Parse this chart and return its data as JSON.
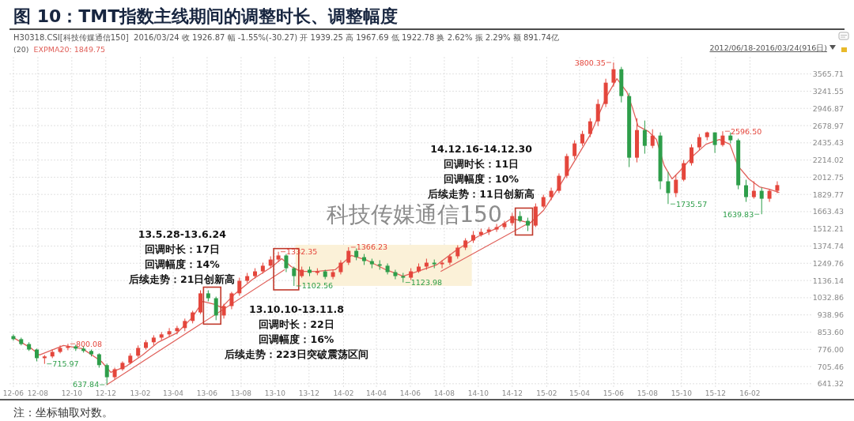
{
  "chart_data": {
    "type": "candlestick",
    "title": "图 10：TMT指数主线期间的调整时长、调整幅度",
    "subtitle": "H30318.CSI[科技传媒通信150]  2016/03/24 收 1926.87 幅 -1.55%(-30.27) 开 1939.25 高 1967.69 低 1922.78 换 2.62% 振 2.29% 额 891.74亿",
    "legend_title": "(20)",
    "legend": "top left",
    "log": true,
    "grid": true,
    "xlim": [
      "2012-06-11",
      "2016-05-24"
    ],
    "ylim": [
      627,
      3920
    ],
    "xticks": [
      {
        "value": "2012-06-18",
        "label": "12-06"
      },
      {
        "value": "2012-08-01",
        "label": "12-08"
      },
      {
        "value": "2012-10-01",
        "label": "12-10"
      },
      {
        "value": "2012-12-01",
        "label": "12-12"
      },
      {
        "value": "2013-02-01",
        "label": "13-02"
      },
      {
        "value": "2013-04-01",
        "label": "13-04"
      },
      {
        "value": "2013-06-01",
        "label": "13-06"
      },
      {
        "value": "2013-08-01",
        "label": "13-08"
      },
      {
        "value": "2013-10-01",
        "label": "13-10"
      },
      {
        "value": "2013-12-01",
        "label": "13-12"
      },
      {
        "value": "2014-02-01",
        "label": "14-02"
      },
      {
        "value": "2014-04-01",
        "label": "14-04"
      },
      {
        "value": "2014-06-01",
        "label": "14-06"
      },
      {
        "value": "2014-08-01",
        "label": "14-08"
      },
      {
        "value": "2014-10-01",
        "label": "14-10"
      },
      {
        "value": "2014-12-01",
        "label": "14-12"
      },
      {
        "value": "2015-02-01",
        "label": "15-02"
      },
      {
        "value": "2015-04-01",
        "label": "15-04"
      },
      {
        "value": "2015-06-01",
        "label": "15-06"
      },
      {
        "value": "2015-08-01",
        "label": "15-08"
      },
      {
        "value": "2015-10-01",
        "label": "15-10"
      },
      {
        "value": "2015-12-01",
        "label": "15-12"
      },
      {
        "value": "2016-02-01",
        "label": "16-02"
      }
    ],
    "yticks": [
      641.32,
      705.46,
      {
        "value": 776,
        "label": "776.00"
      },
      {
        "value": 853.6,
        "label": "853.60"
      },
      938.96,
      1032.86,
      1136.14,
      1249.76,
      1374.74,
      1512.21,
      1663.43,
      1829.77,
      2012.75,
      2214.02,
      2435.43,
      2678.97,
      2946.87,
      3241.55,
      3565.71
    ],
    "series": [
      {
        "x": [
          "2012-06-18",
          "2012-07-02",
          "2012-07-16",
          "2012-07-30",
          "2012-08-13",
          "2012-08-27",
          "2012-09-10",
          "2012-09-24",
          "2012-10-08",
          "2012-10-22",
          "2012-11-05",
          "2012-11-19",
          "2012-12-03",
          "2012-12-17",
          "2012-12-31",
          "2013-01-14",
          "2013-01-28",
          "2013-02-11",
          "2013-02-25",
          "2013-03-11",
          "2013-03-25",
          "2013-04-08",
          "2013-04-22",
          "2013-05-06",
          "2013-05-20",
          "2013-06-03",
          "2013-06-17",
          "2013-07-01",
          "2013-07-15",
          "2013-07-29",
          "2013-08-12",
          "2013-08-26",
          "2013-09-09",
          "2013-09-23",
          "2013-10-07",
          "2013-10-21",
          "2013-11-04",
          "2013-11-18",
          "2013-12-02",
          "2013-12-16",
          "2013-12-30",
          "2014-01-13",
          "2014-01-27",
          "2014-02-10",
          "2014-02-24",
          "2014-03-10",
          "2014-03-24",
          "2014-04-07",
          "2014-04-21",
          "2014-05-05",
          "2014-05-19",
          "2014-06-02",
          "2014-06-16",
          "2014-06-30",
          "2014-07-14",
          "2014-07-28",
          "2014-08-11",
          "2014-08-25",
          "2014-09-08",
          "2014-09-22",
          "2014-10-06",
          "2014-10-20",
          "2014-11-03",
          "2014-11-17",
          "2014-12-01",
          "2014-12-15",
          "2014-12-29",
          "2015-01-12",
          "2015-01-26",
          "2015-02-09",
          "2015-02-23",
          "2015-03-09",
          "2015-03-23",
          "2015-04-06",
          "2015-04-20",
          "2015-05-04",
          "2015-05-18",
          "2015-06-01",
          "2015-06-15",
          "2015-06-29",
          "2015-07-13",
          "2015-07-27",
          "2015-08-10",
          "2015-08-24",
          "2015-09-07",
          "2015-09-21",
          "2015-10-05",
          "2015-10-19",
          "2015-11-02",
          "2015-11-16",
          "2015-11-30",
          "2015-12-14",
          "2015-12-28",
          "2016-01-11",
          "2016-01-25",
          "2016-02-08",
          "2016-02-22",
          "2016-03-07",
          "2016-03-21"
        ],
        "ohlc": [
          [
            835,
            843,
            814,
            821
          ],
          [
            821,
            828,
            793,
            799
          ],
          [
            799,
            807,
            769,
            775
          ],
          [
            775,
            779,
            726,
            739
          ],
          [
            739,
            752,
            715.97,
            746
          ],
          [
            746,
            775,
            739,
            765
          ],
          [
            765,
            793,
            759,
            782
          ],
          [
            782,
            800.08,
            772,
            789
          ],
          [
            789,
            796,
            769,
            779
          ],
          [
            779,
            789,
            762,
            769
          ],
          [
            769,
            775,
            746,
            755
          ],
          [
            755,
            759,
            701,
            711
          ],
          [
            711,
            717,
            637.84,
            665
          ],
          [
            665,
            701,
            657,
            695
          ],
          [
            695,
            726,
            689,
            720
          ],
          [
            720,
            759,
            714,
            749
          ],
          [
            749,
            793,
            742,
            782
          ],
          [
            782,
            817,
            775,
            807
          ],
          [
            807,
            839,
            793,
            828
          ],
          [
            828,
            854,
            817,
            843
          ],
          [
            843,
            873,
            832,
            858
          ],
          [
            858,
            884,
            843,
            873
          ],
          [
            873,
            920,
            858,
            908
          ],
          [
            908,
            961,
            896,
            952
          ],
          [
            952,
            1076,
            944,
            1058
          ],
          [
            1058,
            1076,
            1012,
            1030
          ],
          [
            1030,
            1039,
            912,
            936
          ],
          [
            936,
            999,
            920,
            986
          ],
          [
            986,
            1067,
            969,
            1058
          ],
          [
            1058,
            1154,
            1044,
            1134
          ],
          [
            1134,
            1185,
            1120,
            1164
          ],
          [
            1164,
            1216,
            1149,
            1195
          ],
          [
            1195,
            1254,
            1180,
            1233
          ],
          [
            1233,
            1299,
            1216,
            1276
          ],
          [
            1276,
            1332.35,
            1260,
            1305
          ],
          [
            1305,
            1316,
            1190,
            1216
          ],
          [
            1216,
            1227,
            1102.56,
            1164
          ],
          [
            1164,
            1227,
            1154,
            1206
          ],
          [
            1206,
            1227,
            1164,
            1185
          ],
          [
            1185,
            1216,
            1170,
            1195
          ],
          [
            1195,
            1206,
            1144,
            1159
          ],
          [
            1159,
            1206,
            1144,
            1190
          ],
          [
            1190,
            1271,
            1175,
            1254
          ],
          [
            1254,
            1366.23,
            1238,
            1339
          ],
          [
            1339,
            1357,
            1271,
            1293
          ],
          [
            1293,
            1316,
            1238,
            1265
          ],
          [
            1265,
            1282,
            1216,
            1243
          ],
          [
            1243,
            1271,
            1206,
            1233
          ],
          [
            1233,
            1249,
            1175,
            1190
          ],
          [
            1190,
            1206,
            1144,
            1164
          ],
          [
            1164,
            1185,
            1123.98,
            1154
          ],
          [
            1154,
            1216,
            1139,
            1195
          ],
          [
            1195,
            1249,
            1185,
            1227
          ],
          [
            1227,
            1282,
            1206,
            1254
          ],
          [
            1254,
            1276,
            1216,
            1243
          ],
          [
            1243,
            1271,
            1216,
            1254
          ],
          [
            1254,
            1316,
            1238,
            1299
          ],
          [
            1299,
            1381,
            1282,
            1363
          ],
          [
            1363,
            1436,
            1345,
            1418
          ],
          [
            1418,
            1494,
            1399,
            1462
          ],
          [
            1462,
            1514,
            1449,
            1487
          ],
          [
            1487,
            1527,
            1462,
            1507
          ],
          [
            1507,
            1554,
            1487,
            1527
          ],
          [
            1527,
            1581,
            1507,
            1561
          ],
          [
            1561,
            1652,
            1540,
            1623
          ],
          [
            1623,
            1667,
            1568,
            1581
          ],
          [
            1581,
            1609,
            1494,
            1540
          ],
          [
            1540,
            1741,
            1527,
            1711
          ],
          [
            1711,
            1827,
            1696,
            1803
          ],
          [
            1803,
            1900,
            1772,
            1867
          ],
          [
            1867,
            2056,
            1843,
            2029
          ],
          [
            2029,
            2293,
            2002,
            2263
          ],
          [
            2263,
            2470,
            2224,
            2427
          ],
          [
            2427,
            2603,
            2395,
            2558
          ],
          [
            2558,
            2791,
            2513,
            2743
          ],
          [
            2743,
            3100,
            2672,
            3020
          ],
          [
            3020,
            3473,
            2968,
            3398
          ],
          [
            3398,
            3800.35,
            3325,
            3661
          ],
          [
            3661,
            3709,
            3046,
            3155
          ],
          [
            3155,
            3211,
            2129,
            2243
          ],
          [
            2243,
            2791,
            2185,
            2614
          ],
          [
            2614,
            2755,
            2293,
            2395
          ],
          [
            2395,
            2626,
            2364,
            2535
          ],
          [
            2535,
            2580,
            1883,
            1968
          ],
          [
            1968,
            2074,
            1735.57,
            1843
          ],
          [
            1843,
            2038,
            1803,
            1985
          ],
          [
            1985,
            2214,
            1968,
            2176
          ],
          [
            2176,
            2416,
            2147,
            2375
          ],
          [
            2375,
            2558,
            2344,
            2513
          ],
          [
            2513,
            2591,
            2470,
            2580
          ],
          [
            2580,
            2580,
            2303,
            2406
          ],
          [
            2406,
            2596.5,
            2385,
            2535
          ],
          [
            2535,
            2580,
            2427,
            2470
          ],
          [
            2470,
            2492,
            1883,
            1925
          ],
          [
            1925,
            1985,
            1756,
            1803
          ],
          [
            1803,
            1968,
            1787,
            1867
          ],
          [
            1867,
            1900,
            1639.83,
            1787
          ],
          [
            1787,
            1883,
            1756,
            1867
          ],
          [
            1867,
            1967.69,
            1843,
            1926.87
          ]
        ],
        "colors": [
          "#2e9e4a",
          "#2e9e4a",
          "#2e9e4a",
          "#2e9e4a",
          "#e4463c",
          "#e4463c",
          "#e4463c",
          "#e4463c",
          "#2e9e4a",
          "#2e9e4a",
          "#2e9e4a",
          "#2e9e4a",
          "#2e9e4a",
          "#e4463c",
          "#e4463c",
          "#e4463c",
          "#e4463c",
          "#e4463c",
          "#e4463c",
          "#e4463c",
          "#e4463c",
          "#e4463c",
          "#e4463c",
          "#e4463c",
          "#e4463c",
          "#2e9e4a",
          "#2e9e4a",
          "#e4463c",
          "#e4463c",
          "#e4463c",
          "#e4463c",
          "#e4463c",
          "#e4463c",
          "#e4463c",
          "#e4463c",
          "#2e9e4a",
          "#2e9e4a",
          "#e4463c",
          "#2e9e4a",
          "#e4463c",
          "#2e9e4a",
          "#e4463c",
          "#e4463c",
          "#e4463c",
          "#2e9e4a",
          "#2e9e4a",
          "#2e9e4a",
          "#2e9e4a",
          "#2e9e4a",
          "#2e9e4a",
          "#2e9e4a",
          "#e4463c",
          "#e4463c",
          "#e4463c",
          "#2e9e4a",
          "#e4463c",
          "#e4463c",
          "#e4463c",
          "#e4463c",
          "#e4463c",
          "#e4463c",
          "#e4463c",
          "#e4463c",
          "#e4463c",
          "#e4463c",
          "#2e9e4a",
          "#2e9e4a",
          "#e4463c",
          "#e4463c",
          "#e4463c",
          "#e4463c",
          "#e4463c",
          "#e4463c",
          "#e4463c",
          "#e4463c",
          "#e4463c",
          "#e4463c",
          "#e4463c",
          "#2e9e4a",
          "#2e9e4a",
          "#e4463c",
          "#2e9e4a",
          "#e4463c",
          "#2e9e4a",
          "#2e9e4a",
          "#e4463c",
          "#e4463c",
          "#e4463c",
          "#e4463c",
          "#e4463c",
          "#2e9e4a",
          "#e4463c",
          "#2e9e4a",
          "#2e9e4a",
          "#2e9e4a",
          "#e4463c",
          "#2e9e4a",
          "#e4463c",
          "#e4463c"
        ]
      },
      {
        "type": "line",
        "name": "EXPMA20: 1849.75",
        "color": "#e0605a",
        "x": [
          "2012-06-18",
          "2012-07-21",
          "2012-08-04",
          "2012-09-16",
          "2012-10-20",
          "2012-11-23",
          "2012-12-10",
          "2013-01-07",
          "2013-02-05",
          "2013-03-05",
          "2013-04-08",
          "2013-05-06",
          "2013-05-24",
          "2013-06-15",
          "2013-06-27",
          "2013-07-19",
          "2013-08-22",
          "2013-09-26",
          "2013-10-13",
          "2013-10-30",
          "2013-11-16",
          "2013-12-14",
          "2014-01-17",
          "2014-02-15",
          "2014-03-15",
          "2014-04-18",
          "2014-05-19",
          "2014-06-14",
          "2014-07-18",
          "2014-08-21",
          "2014-09-30",
          "2014-11-02",
          "2014-11-30",
          "2015-01-02",
          "2015-01-26",
          "2015-02-23",
          "2015-03-24",
          "2015-04-21",
          "2015-05-19",
          "2015-06-07",
          "2015-06-25",
          "2015-07-05",
          "2015-07-15",
          "2015-08-03",
          "2015-08-17",
          "2015-08-31",
          "2015-09-14",
          "2015-09-28",
          "2015-10-23",
          "2015-11-14",
          "2015-12-08",
          "2015-12-27",
          "2016-01-10",
          "2016-01-30",
          "2016-02-18",
          "2016-03-07",
          "2016-03-24"
        ],
        "values": [
          828,
          779,
          752,
          793,
          779,
          726,
          683,
          707,
          752,
          807,
          850,
          928,
          1012,
          995,
          978,
          1049,
          1144,
          1227,
          1282,
          1227,
          1195,
          1195,
          1206,
          1305,
          1271,
          1206,
          1164,
          1195,
          1238,
          1339,
          1449,
          1514,
          1602,
          1561,
          1674,
          1908,
          2214,
          2558,
          3141,
          3473,
          3225,
          2955,
          2672,
          2591,
          2481,
          2147,
          1994,
          2083,
          2273,
          2416,
          2481,
          2416,
          2147,
          1994,
          1908,
          1883,
          1849.75
        ]
      },
      {
        "type": "line",
        "color": "#e0605a",
        "x": [
          "2012-12-03",
          "2013-10-18"
        ],
        "values": [
          637.84,
          1206
        ]
      },
      {
        "type": "line",
        "color": "#e0605a",
        "x": [
          "2014-07-26",
          "2015-01-02"
        ],
        "values": [
          1195,
          1568
        ]
      }
    ],
    "annotations": [
      {
        "text": "715.97",
        "x": "2012-08-13",
        "y": 715.97
      },
      {
        "text": "800.08",
        "x": "2012-09-24",
        "y": 800.08
      },
      {
        "text": "637.84",
        "x": "2012-12-03",
        "y": 637.84
      },
      {
        "text": "1332.35",
        "x": "2013-10-07",
        "y": 1332.35
      },
      {
        "text": "1102.56",
        "x": "2013-11-04",
        "y": 1102.56
      },
      {
        "text": "1366.23",
        "x": "2014-02-10",
        "y": 1366.23
      },
      {
        "text": "1123.98",
        "x": "2014-05-19",
        "y": 1123.98
      },
      {
        "text": "3800.35",
        "x": "2015-06-01",
        "y": 3800.35
      },
      {
        "text": "1735.57",
        "x": "2015-09-07",
        "y": 1735.57
      },
      {
        "text": "2596.50",
        "x": "2015-12-14",
        "y": 2596.5
      },
      {
        "text": "1639.83",
        "x": "2016-02-22",
        "y": 1639.83
      },
      "13.5.28-13.6.24",
      "回调时长：17日",
      "回调幅度：14%",
      "后续走势：21日创新高",
      "13.10.10-13.11.8",
      "回调时长：22日",
      "回调幅度：16%",
      "后续走势：223日突破震荡区间",
      "14.12.16-14.12.30",
      "回调时长：11日",
      "回调幅度：10%",
      "后续走势：11日创新高",
      "科技传媒通信150",
      "2012/06/18-2016/03/24(916日)",
      "注：坐标轴取对数。"
    ]
  }
}
